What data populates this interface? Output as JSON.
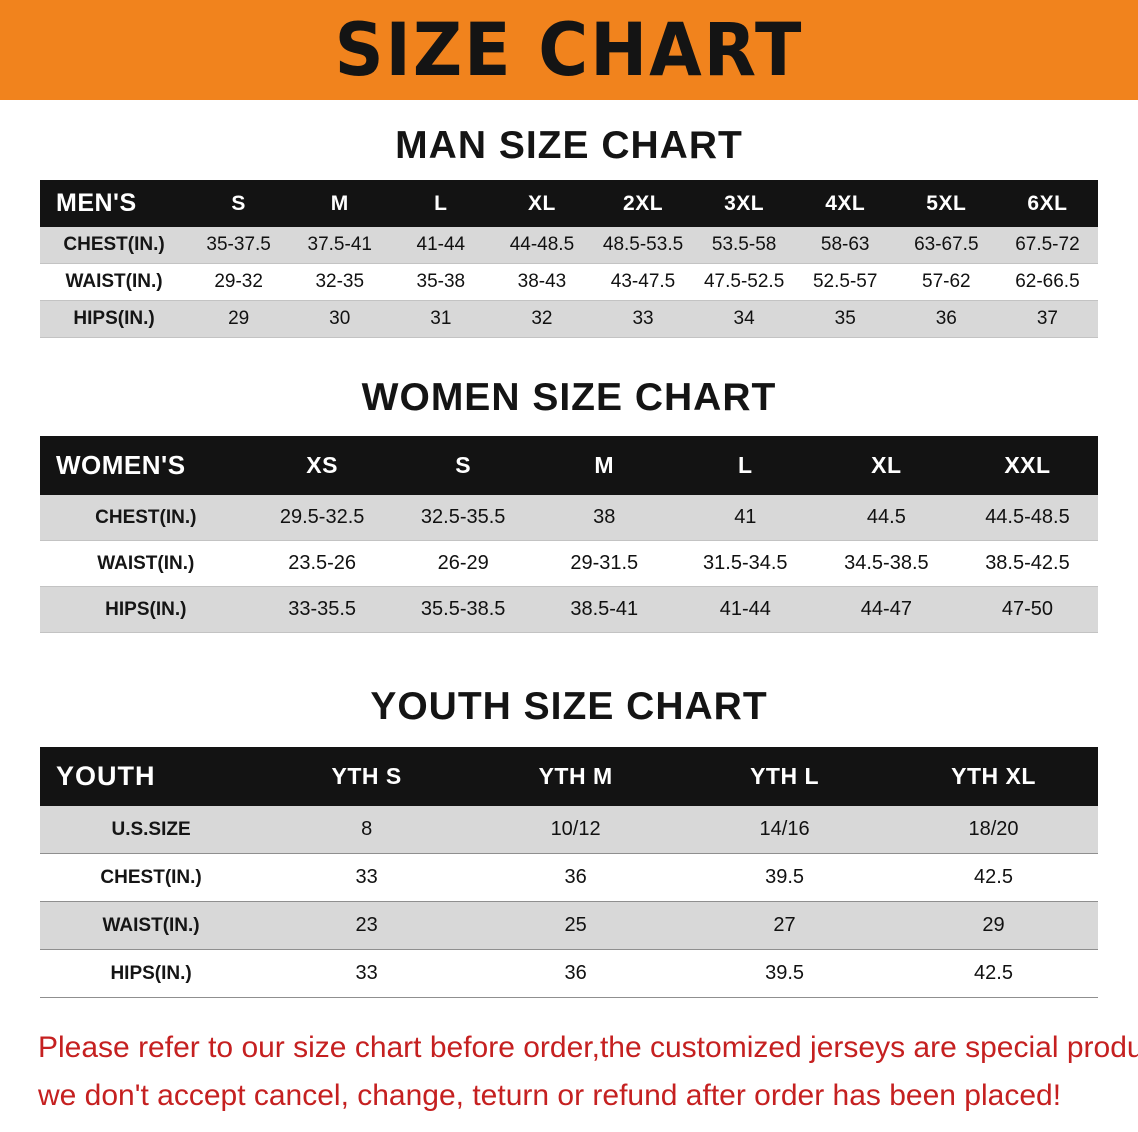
{
  "banner": {
    "title": "SIZE CHART"
  },
  "colors": {
    "banner_bg": "#f1831d",
    "header_bg": "#131313",
    "row_shade": "#d8d8d8",
    "disclaimer": "#c52020"
  },
  "men": {
    "heading": "MAN SIZE CHART",
    "header": [
      "MEN'S",
      "S",
      "M",
      "L",
      "XL",
      "2XL",
      "3XL",
      "4XL",
      "5XL",
      "6XL"
    ],
    "rows": [
      {
        "label": "CHEST(IN.)",
        "values": [
          "35-37.5",
          "37.5-41",
          "41-44",
          "44-48.5",
          "48.5-53.5",
          "53.5-58",
          "58-63",
          "63-67.5",
          "67.5-72"
        ]
      },
      {
        "label": "WAIST(IN.)",
        "values": [
          "29-32",
          "32-35",
          "35-38",
          "38-43",
          "43-47.5",
          "47.5-52.5",
          "52.5-57",
          "57-62",
          "62-66.5"
        ]
      },
      {
        "label": "HIPS(IN.)",
        "values": [
          "29",
          "30",
          "31",
          "32",
          "33",
          "34",
          "35",
          "36",
          "37"
        ]
      }
    ]
  },
  "women": {
    "heading": "WOMEN SIZE CHART",
    "header": [
      "WOMEN'S",
      "XS",
      "S",
      "M",
      "L",
      "XL",
      "XXL"
    ],
    "rows": [
      {
        "label": "CHEST(IN.)",
        "values": [
          "29.5-32.5",
          "32.5-35.5",
          "38",
          "41",
          "44.5",
          "44.5-48.5"
        ]
      },
      {
        "label": "WAIST(IN.)",
        "values": [
          "23.5-26",
          "26-29",
          "29-31.5",
          "31.5-34.5",
          "34.5-38.5",
          "38.5-42.5"
        ]
      },
      {
        "label": "HIPS(IN.)",
        "values": [
          "33-35.5",
          "35.5-38.5",
          "38.5-41",
          "41-44",
          "44-47",
          "47-50"
        ]
      }
    ]
  },
  "youth": {
    "heading": "YOUTH SIZE CHART",
    "header": [
      "YOUTH",
      "YTH S",
      "YTH M",
      "YTH L",
      "YTH XL"
    ],
    "rows": [
      {
        "label": "U.S.SIZE",
        "values": [
          "8",
          "10/12",
          "14/16",
          "18/20"
        ]
      },
      {
        "label": "CHEST(IN.)",
        "values": [
          "33",
          "36",
          "39.5",
          "42.5"
        ]
      },
      {
        "label": "WAIST(IN.)",
        "values": [
          "23",
          "25",
          "27",
          "29"
        ]
      },
      {
        "label": "HIPS(IN.)",
        "values": [
          "33",
          "36",
          "39.5",
          "42.5"
        ]
      }
    ]
  },
  "disclaimer": {
    "line1": "Please refer to our size chart before order,the customized jerseys are special products,",
    "line2": "we don't accept cancel, change, teturn or refund after order has been placed!"
  }
}
